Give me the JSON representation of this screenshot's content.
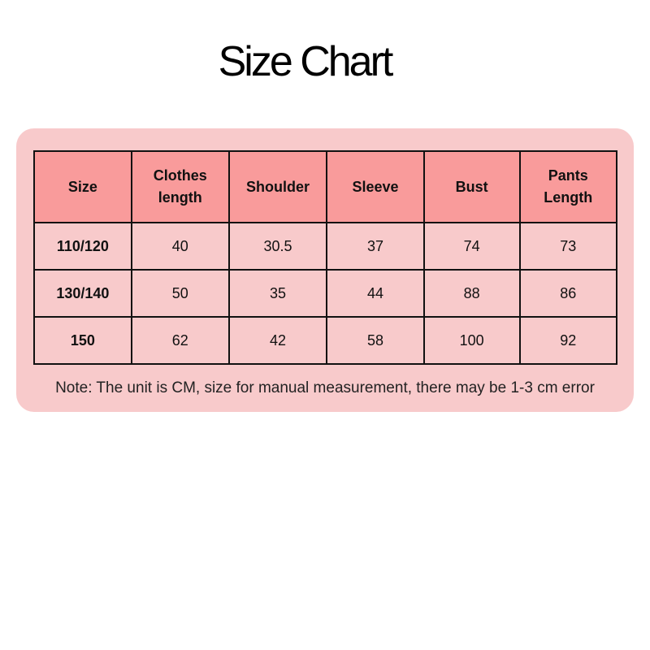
{
  "title": "Size Chart",
  "colors": {
    "panel": "#f8cacb",
    "header": "#f99b9b"
  },
  "table": {
    "headers": [
      "Size",
      "Clothes length",
      "Shoulder",
      "Sleeve",
      "Bust",
      "Pants Length"
    ],
    "rows": [
      [
        "110/120",
        "40",
        "30.5",
        "37",
        "74",
        "73"
      ],
      [
        "130/140",
        "50",
        "35",
        "44",
        "88",
        "86"
      ],
      [
        "150",
        "62",
        "42",
        "58",
        "100",
        "92"
      ]
    ]
  },
  "note": "Note: The unit is CM, size for manual measurement, there may be 1-3 cm error"
}
